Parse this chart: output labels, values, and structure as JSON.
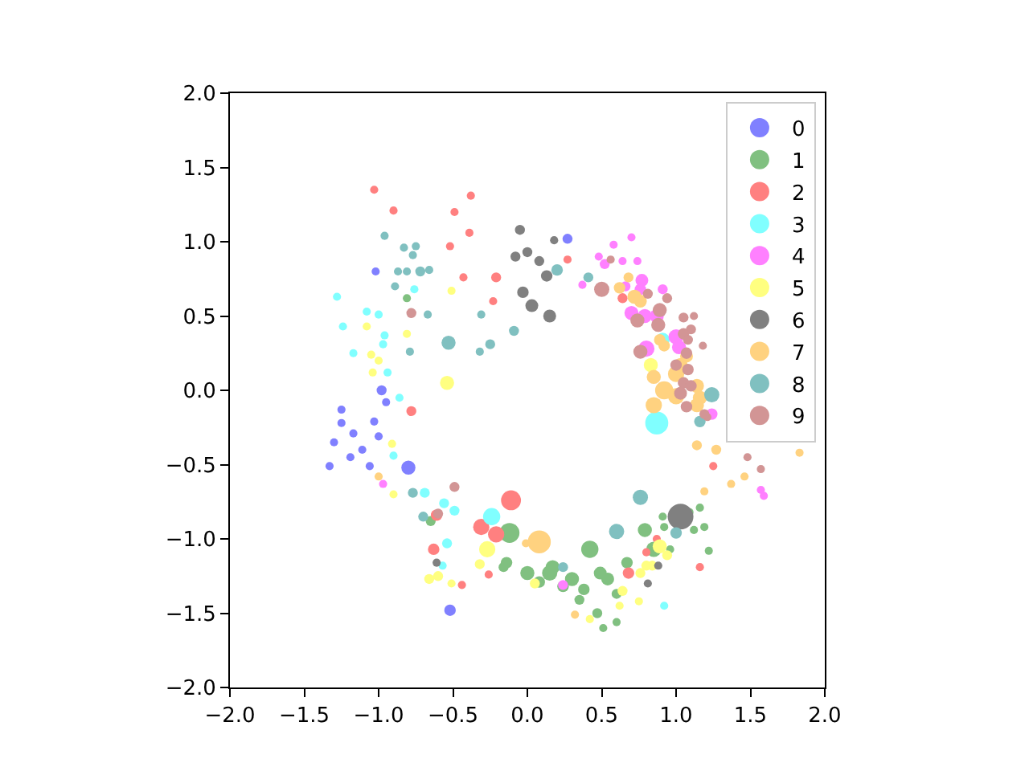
{
  "chart_data": {
    "type": "bubble",
    "xlim": [
      -2,
      2
    ],
    "ylim": [
      -2,
      2
    ],
    "xticks": [
      {
        "value": -2,
        "label": "−2.0"
      },
      {
        "value": -1.5,
        "label": "−1.5"
      },
      {
        "value": -1,
        "label": "−1.0"
      },
      {
        "value": -0.5,
        "label": "−0.5"
      },
      {
        "value": 0,
        "label": "0.0"
      },
      {
        "value": 0.5,
        "label": "0.5"
      },
      {
        "value": 1,
        "label": "1.0"
      },
      {
        "value": 1.5,
        "label": "1.5"
      },
      {
        "value": 2,
        "label": "2.0"
      }
    ],
    "yticks": [
      {
        "value": -2,
        "label": "−2.0"
      },
      {
        "value": -1.5,
        "label": "−1.5"
      },
      {
        "value": -1,
        "label": "−1.0"
      },
      {
        "value": -0.5,
        "label": "−0.5"
      },
      {
        "value": 0,
        "label": "0.0"
      },
      {
        "value": 0.5,
        "label": "0.5"
      },
      {
        "value": 1,
        "label": "1.0"
      },
      {
        "value": 1.5,
        "label": "1.5"
      },
      {
        "value": 2,
        "label": "2.0"
      }
    ],
    "legend": "top right",
    "series": [
      {
        "name": "0",
        "color": "#8080ff",
        "x": [
          -0.8,
          -0.52,
          -1.02,
          -0.98,
          0.27,
          -1.25,
          -1.17,
          -1.11,
          -1.06,
          -1.0,
          -1.19,
          -1.33,
          -0.95,
          -1.03,
          -1.3,
          -1.25
        ],
        "values": [
          -0.52,
          -1.48,
          0.8,
          0.0,
          1.02,
          -0.22,
          -0.29,
          -0.4,
          -0.51,
          -0.31,
          -0.45,
          -0.51,
          -0.08,
          -0.21,
          -0.35,
          -0.13
        ],
        "sizes": [
          0.3,
          0.2,
          0.1,
          0.15,
          0.15,
          0.1,
          0.1,
          0.1,
          0.1,
          0.1,
          0.1,
          0.1,
          0.1,
          0.1,
          0.1,
          0.1
        ]
      },
      {
        "name": "1",
        "color": "#80c080",
        "x": [
          -0.12,
          -0.14,
          0.0,
          0.15,
          0.17,
          0.3,
          0.38,
          0.47,
          0.42,
          0.49,
          0.54,
          0.24,
          0.08,
          0.35,
          0.51,
          -0.65,
          -0.16,
          0.79,
          0.85,
          0.6,
          0.67,
          0.6,
          0.91,
          1.09,
          1.12,
          1.19,
          1.16,
          0.92,
          1.22,
          0.96,
          -0.81
        ],
        "values": [
          -0.96,
          -1.16,
          -1.23,
          -1.23,
          -1.19,
          -1.27,
          -1.34,
          -1.5,
          -1.07,
          -1.23,
          -1.27,
          -1.32,
          -1.29,
          -1.41,
          -1.6,
          -0.88,
          -1.19,
          -0.94,
          -1.07,
          -1.37,
          -1.16,
          -1.56,
          -0.85,
          -0.82,
          -0.94,
          -0.92,
          -0.79,
          -0.92,
          -1.08,
          -1.07,
          0.62
        ],
        "sizes": [
          0.6,
          0.2,
          0.3,
          0.35,
          0.3,
          0.3,
          0.2,
          0.15,
          0.45,
          0.25,
          0.25,
          0.2,
          0.2,
          0.15,
          0.1,
          0.15,
          0.15,
          0.3,
          0.35,
          0.15,
          0.2,
          0.1,
          0.1,
          0.1,
          0.1,
          0.1,
          0.1,
          0.1,
          0.1,
          0.1,
          0.1
        ]
      },
      {
        "name": "2",
        "color": "#ff8080",
        "x": [
          -0.11,
          -0.31,
          -0.21,
          -0.63,
          -0.61,
          -0.26,
          -0.44,
          -0.78,
          -0.43,
          -0.21,
          -0.52,
          -0.39,
          -0.23,
          -0.9,
          -1.03,
          -0.38,
          -0.49,
          0.27,
          0.64,
          0.87,
          0.8,
          1.16,
          0.68,
          1.25
        ],
        "values": [
          -0.74,
          -0.92,
          -0.97,
          -1.07,
          -0.84,
          -1.24,
          -1.31,
          -0.14,
          0.76,
          0.76,
          0.97,
          1.06,
          0.6,
          1.21,
          1.35,
          1.31,
          1.2,
          0.88,
          0.62,
          -1.0,
          -1.09,
          -1.19,
          -1.23,
          -0.51
        ],
        "sizes": [
          0.6,
          0.4,
          0.4,
          0.2,
          0.2,
          0.1,
          0.1,
          0.15,
          0.1,
          0.15,
          0.1,
          0.1,
          0.1,
          0.1,
          0.1,
          0.1,
          0.1,
          0.1,
          0.15,
          0.1,
          0.1,
          0.1,
          0.2,
          0.1
        ]
      },
      {
        "name": "3",
        "color": "#80ffff",
        "x": [
          -1.0,
          -0.96,
          -0.97,
          -1.08,
          -1.17,
          -0.94,
          -0.86,
          -1.24,
          -1.28,
          -0.76,
          -0.69,
          -0.56,
          -0.49,
          -0.54,
          -0.57,
          -0.9,
          -0.24,
          0.87,
          0.91,
          0.92
        ],
        "values": [
          0.51,
          0.37,
          0.31,
          0.53,
          0.25,
          0.12,
          -0.05,
          0.43,
          0.63,
          0.68,
          -0.69,
          -0.76,
          -0.81,
          -1.03,
          -1.18,
          -0.44,
          -0.85,
          -0.22,
          0.34,
          -1.45
        ],
        "sizes": [
          0.1,
          0.1,
          0.1,
          0.1,
          0.1,
          0.1,
          0.1,
          0.1,
          0.1,
          0.1,
          0.15,
          0.15,
          0.15,
          0.15,
          0.1,
          0.1,
          0.45,
          0.8,
          0.3,
          0.1
        ]
      },
      {
        "name": "4",
        "color": "#ff80ff",
        "x": [
          0.77,
          0.7,
          0.79,
          0.87,
          0.76,
          0.66,
          0.91,
          0.8,
          1.0,
          1.02,
          0.58,
          0.52,
          0.64,
          0.74,
          0.48,
          0.37,
          0.7,
          1.24,
          1.57,
          1.59,
          -0.97,
          0.24
        ],
        "values": [
          0.74,
          0.52,
          0.5,
          0.5,
          0.68,
          0.7,
          0.68,
          0.28,
          0.36,
          0.29,
          0.98,
          0.85,
          0.87,
          0.87,
          0.9,
          0.71,
          1.03,
          -0.16,
          -0.67,
          -0.71,
          -0.63,
          -1.31
        ],
        "sizes": [
          0.25,
          0.3,
          0.3,
          0.3,
          0.2,
          0.15,
          0.15,
          0.4,
          0.35,
          0.3,
          0.1,
          0.15,
          0.1,
          0.1,
          0.1,
          0.1,
          0.1,
          0.2,
          0.1,
          0.1,
          0.1,
          0.15
        ]
      },
      {
        "name": "5",
        "color": "#ffff80",
        "x": [
          -1.08,
          -1.05,
          -1.0,
          -1.04,
          -0.54,
          -0.51,
          -0.81,
          -0.91,
          -0.9,
          -0.66,
          -0.6,
          -0.51,
          -0.27,
          -0.32,
          0.05,
          0.42,
          0.89,
          0.94,
          0.8,
          0.84,
          0.76,
          0.64,
          0.62,
          0.75,
          0.83
        ],
        "values": [
          0.43,
          0.24,
          0.2,
          0.12,
          0.05,
          0.67,
          0.38,
          -0.36,
          -0.7,
          -1.27,
          -1.25,
          -1.3,
          -1.07,
          -1.17,
          -1.3,
          -1.54,
          -1.05,
          -1.11,
          -1.18,
          -1.18,
          -1.23,
          -1.35,
          -1.45,
          -1.42,
          0.17
        ],
        "sizes": [
          0.1,
          0.1,
          0.1,
          0.1,
          0.3,
          0.1,
          0.1,
          0.1,
          0.1,
          0.15,
          0.15,
          0.1,
          0.4,
          0.15,
          0.15,
          0.1,
          0.3,
          0.15,
          0.15,
          0.15,
          0.15,
          0.15,
          0.1,
          0.1,
          0.3
        ]
      },
      {
        "name": "6",
        "color": "#808080",
        "x": [
          -0.05,
          0.0,
          0.08,
          0.13,
          -0.03,
          0.03,
          0.15,
          -0.08,
          0.18,
          1.03,
          -0.61,
          0.81,
          0.88
        ],
        "values": [
          1.08,
          0.93,
          0.87,
          0.77,
          0.66,
          0.57,
          0.5,
          0.9,
          1.01,
          -0.85,
          -1.16,
          -1.3,
          -1.18
        ],
        "sizes": [
          0.15,
          0.15,
          0.15,
          0.2,
          0.2,
          0.25,
          0.25,
          0.15,
          0.1,
          1,
          0.1,
          0.1,
          0.1
        ]
      },
      {
        "name": "7",
        "color": "#ffd280",
        "x": [
          0.62,
          0.68,
          0.72,
          0.76,
          0.92,
          1.0,
          0.85,
          1.0,
          1.03,
          1.07,
          0.92,
          0.85,
          1.14,
          1.16,
          1.14,
          0.89,
          1.27,
          1.46,
          1.83,
          1.14,
          1.19,
          1.37,
          -0.01,
          0.08,
          0.32,
          -1.0
        ],
        "values": [
          0.69,
          0.76,
          0.63,
          0.6,
          0.0,
          -0.04,
          -0.1,
          0.11,
          0.17,
          0.23,
          0.3,
          0.09,
          0.03,
          -0.05,
          -0.37,
          0.34,
          -0.4,
          -0.58,
          -0.42,
          -0.1,
          -0.68,
          -0.63,
          -1.03,
          -1.02,
          -1.51,
          -0.58
        ],
        "sizes": [
          0.2,
          0.15,
          0.3,
          0.25,
          0.5,
          0.4,
          0.4,
          0.4,
          0.3,
          0.25,
          0.2,
          0.3,
          0.3,
          0.3,
          0.15,
          0.2,
          0.15,
          0.1,
          0.1,
          0.3,
          0.1,
          0.1,
          0.1,
          0.8,
          0.1,
          0.1
        ]
      },
      {
        "name": "8",
        "color": "#80c0c0",
        "x": [
          -0.83,
          -0.77,
          -0.75,
          -0.87,
          -0.81,
          -0.72,
          -0.66,
          -0.89,
          -0.67,
          -0.53,
          -0.31,
          -0.09,
          -0.25,
          -0.32,
          -0.79,
          -0.96,
          0.2,
          0.41,
          1.24,
          1.16,
          0.76,
          0.6,
          1.0,
          0.24,
          -0.77,
          -0.7
        ],
        "values": [
          0.96,
          0.91,
          0.97,
          0.8,
          0.8,
          0.8,
          0.81,
          0.7,
          0.51,
          0.32,
          0.51,
          0.4,
          0.31,
          0.26,
          0.26,
          1.04,
          0.81,
          0.76,
          -0.03,
          -0.21,
          -0.72,
          -0.95,
          -0.96,
          -1.19,
          -0.69,
          -0.85
        ],
        "sizes": [
          0.1,
          0.1,
          0.1,
          0.1,
          0.1,
          0.15,
          0.1,
          0.1,
          0.1,
          0.3,
          0.1,
          0.15,
          0.15,
          0.1,
          0.1,
          0.1,
          0.2,
          0.15,
          0.35,
          0.2,
          0.35,
          0.35,
          0.2,
          0.15,
          0.15,
          0.15
        ]
      },
      {
        "name": "9",
        "color": "#d29595",
        "x": [
          0.5,
          0.74,
          0.88,
          0.89,
          0.94,
          0.81,
          0.56,
          1.05,
          1.1,
          1.05,
          1.08,
          1.18,
          0.76,
          1.07,
          1.08,
          1.05,
          1.03,
          1.0,
          1.21,
          1.12,
          1.1,
          1.07,
          1.19,
          1.48,
          1.57,
          -0.78,
          -0.49,
          -0.6
        ],
        "values": [
          0.68,
          0.47,
          0.44,
          0.54,
          0.62,
          0.65,
          0.88,
          0.49,
          0.41,
          0.38,
          0.34,
          0.3,
          0.26,
          0.25,
          0.14,
          0.05,
          -0.02,
          0.17,
          -0.18,
          0.5,
          0.03,
          -0.11,
          -0.16,
          -0.45,
          -0.53,
          0.52,
          -0.65,
          -0.83
        ],
        "sizes": [
          0.35,
          0.3,
          0.3,
          0.3,
          0.15,
          0.15,
          0.1,
          0.15,
          0.15,
          0.2,
          0.15,
          0.1,
          0.3,
          0.2,
          0.2,
          0.2,
          0.25,
          0.2,
          0.1,
          0.1,
          0.2,
          0.2,
          0.15,
          0.1,
          0.1,
          0.15,
          0.15,
          0.15
        ]
      }
    ]
  }
}
